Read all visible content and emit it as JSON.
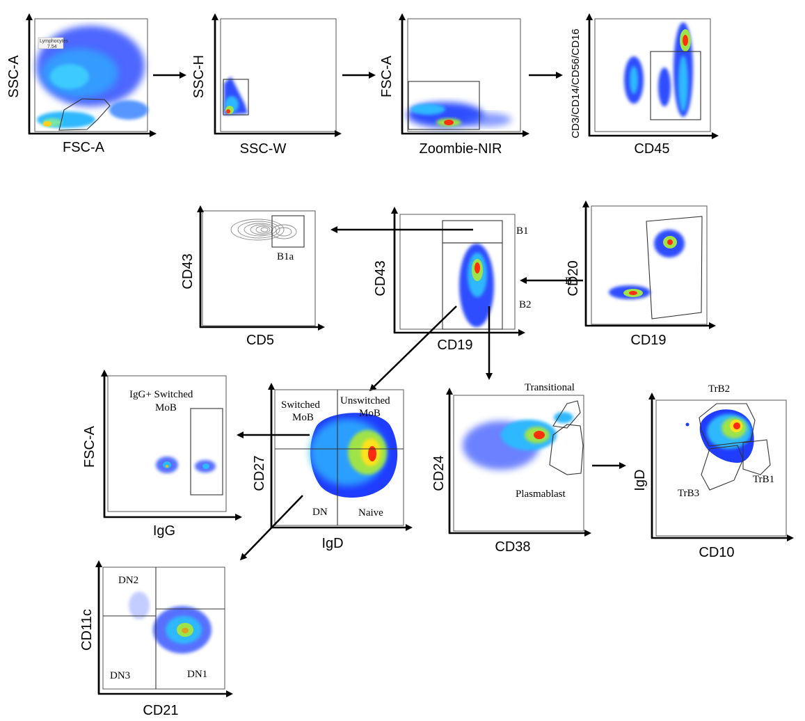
{
  "panels": {
    "p1": {
      "xlabel": "FSC-A",
      "ylabel": "SSC-A",
      "gates": [
        "Lymphocytes",
        "7.54"
      ]
    },
    "p2": {
      "xlabel": "SSC-W",
      "ylabel": "SSC-H"
    },
    "p3": {
      "xlabel": "Zoombie-NIR",
      "ylabel": "FSC-A"
    },
    "p4": {
      "xlabel": "CD45",
      "ylabel": "CD3/CD14/CD56/CD16"
    },
    "p5": {
      "xlabel": "CD5",
      "ylabel": "CD43",
      "gates": [
        "B1a"
      ]
    },
    "p6": {
      "xlabel": "CD19",
      "ylabel": "CD43",
      "gates": [
        "B1",
        "B2"
      ]
    },
    "p7": {
      "xlabel": "CD19",
      "ylabel": "CD20",
      "overlap_text": "B"
    },
    "p8": {
      "xlabel": "IgG",
      "ylabel": "FSC-A",
      "gates": [
        "IgG+ Switched",
        "MoB"
      ]
    },
    "p9": {
      "xlabel": "IgD",
      "ylabel": "CD27",
      "gates": [
        "Switched",
        "MoB",
        "Unswitched",
        "MoB",
        "DN",
        "Naive"
      ]
    },
    "p10": {
      "xlabel": "CD38",
      "ylabel": "CD24",
      "gates": [
        "Transitional",
        "Plasmablast"
      ]
    },
    "p11": {
      "xlabel": "CD10",
      "ylabel": "IgD",
      "gates": [
        "TrB2",
        "TrB1",
        "TrB3"
      ]
    },
    "p12": {
      "xlabel": "CD21",
      "ylabel": "CD11c",
      "gates": [
        "DN2",
        "DN3",
        "DN1"
      ]
    }
  },
  "colors": {
    "density_low": "#1f3cff",
    "density_mid": "#29c4e0",
    "density_high_1": "#9fe34a",
    "density_high_2": "#ffe21f",
    "density_peak": "#ff2a12",
    "contour": "#8c8c8c",
    "axis": "#000000"
  }
}
